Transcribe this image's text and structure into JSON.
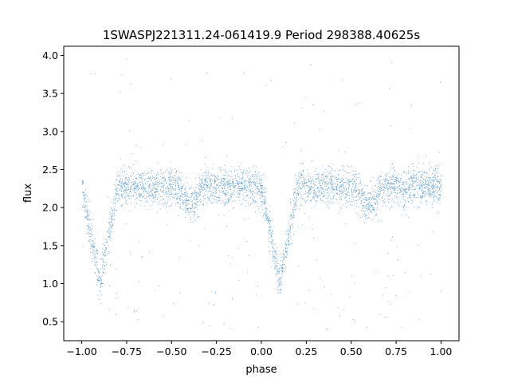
{
  "chart_data": {
    "type": "scatter",
    "title": "1SWASPJ221311.24-061419.9 Period 298388.40625s",
    "xlabel": "phase",
    "ylabel": "flux",
    "xlim": [
      -1.1,
      1.1
    ],
    "ylim": [
      0.25,
      4.12
    ],
    "x_ticks": [
      -1.0,
      -0.75,
      -0.5,
      -0.25,
      0.0,
      0.25,
      0.5,
      0.75,
      1.0
    ],
    "x_tick_labels": [
      "−1.00",
      "−0.75",
      "−0.50",
      "−0.25",
      "0.00",
      "0.25",
      "0.50",
      "0.75",
      "1.00"
    ],
    "y_ticks": [
      0.5,
      1.0,
      1.5,
      2.0,
      2.5,
      3.0,
      3.5,
      4.0
    ],
    "y_tick_labels": [
      "0.5",
      "1.0",
      "1.5",
      "2.0",
      "2.5",
      "3.0",
      "3.5",
      "4.0"
    ],
    "grid": false,
    "marker_color": "#1f77b4",
    "series": [
      {
        "x_range": [
          -1.0,
          1.0
        ],
        "baseline_flux": 2.28,
        "point_spread": 0.12,
        "primary_eclipse": {
          "phases": [
            -0.9,
            0.1
          ],
          "min_flux": 1.0,
          "half_width": 0.1
        },
        "secondary_eclipse": {
          "phases": [
            -0.4,
            0.6
          ],
          "min_flux": 2.05,
          "half_width": 0.07
        },
        "outlier_range": [
          0.4,
          4.0
        ]
      }
    ]
  }
}
